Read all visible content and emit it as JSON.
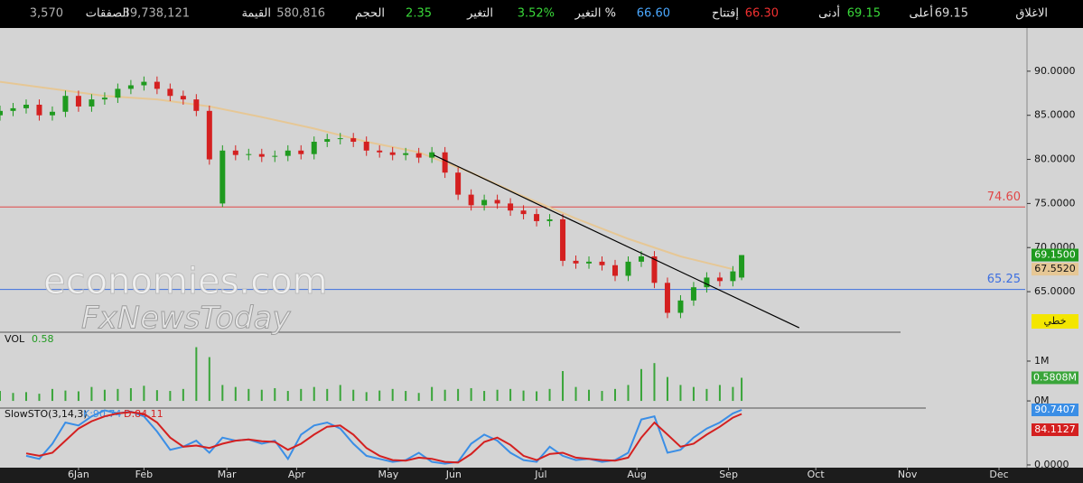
{
  "header": {
    "items": [
      {
        "label": "الاغلاق",
        "value": "69.15",
        "color": "#d8d8d8"
      },
      {
        "label": "أعلى",
        "value": "69.15",
        "color": "#39d839"
      },
      {
        "label": "أدنى",
        "value": "66.30",
        "color": "#f03030"
      },
      {
        "label": "إفتتاح",
        "value": "66.60",
        "color": "#4aa8ff"
      },
      {
        "label": "التغير %",
        "value": "3.52%",
        "color": "#39d839"
      },
      {
        "label": "التغير",
        "value": "2.35",
        "color": "#39d839"
      },
      {
        "label": "الحجم",
        "value": "580,816",
        "color": "#b0b0b0"
      },
      {
        "label": "القيمة",
        "value": "39,738,121",
        "color": "#b0b0b0"
      },
      {
        "label": "الصفقات",
        "value": "3,570",
        "color": "#b0b0b0"
      }
    ]
  },
  "watermark": [
    "economies.com",
    "FxNewsToday"
  ],
  "chart_data": [
    {
      "type": "candlestick",
      "x": [
        0,
        3,
        6,
        9,
        12,
        15,
        18,
        21,
        24,
        27,
        30,
        33,
        36,
        39,
        42,
        45,
        48,
        51,
        54,
        57,
        60,
        63,
        66,
        69,
        72,
        75,
        78,
        81,
        84,
        87,
        90,
        93,
        96,
        99,
        102,
        105,
        108,
        111,
        114,
        117,
        120,
        123,
        126,
        129,
        132,
        135,
        138,
        141,
        144,
        147,
        150,
        153,
        156,
        159,
        162,
        165,
        168,
        170
      ],
      "open": [
        85.0,
        85.5,
        85.8,
        86.2,
        85.0,
        85.4,
        87.2,
        86.0,
        86.8,
        87.0,
        88.0,
        88.4,
        88.8,
        88.0,
        87.2,
        86.8,
        85.5,
        75.0,
        81.0,
        80.5,
        80.6,
        80.3,
        80.4,
        81.0,
        80.6,
        82.0,
        82.3,
        82.4,
        82.0,
        81.0,
        80.8,
        80.5,
        80.7,
        80.2,
        80.8,
        78.5,
        76.0,
        74.8,
        75.4,
        75.0,
        74.2,
        73.8,
        73.0,
        73.2,
        68.5,
        68.2,
        68.4,
        68.0,
        66.8,
        68.4,
        69.0,
        66.0,
        62.6,
        64.0,
        65.5,
        66.6,
        66.2,
        66.6
      ],
      "high": [
        86.1,
        86.4,
        86.8,
        86.8,
        86.0,
        87.8,
        87.8,
        87.4,
        87.6,
        88.6,
        89.0,
        89.4,
        89.4,
        88.6,
        87.8,
        87.4,
        86.1,
        81.6,
        81.6,
        81.2,
        81.2,
        81.0,
        81.6,
        81.6,
        82.6,
        82.9,
        83.0,
        83.0,
        82.6,
        81.6,
        81.4,
        81.3,
        81.3,
        81.4,
        81.4,
        79.1,
        76.6,
        76.0,
        76.0,
        75.6,
        74.8,
        74.4,
        73.8,
        73.8,
        69.1,
        69.0,
        69.0,
        68.6,
        69.0,
        69.6,
        69.6,
        66.6,
        64.6,
        66.1,
        67.2,
        67.2,
        67.9,
        69.15
      ],
      "low": [
        84.4,
        84.9,
        85.2,
        84.4,
        84.4,
        84.8,
        85.4,
        85.4,
        86.2,
        86.4,
        87.4,
        87.8,
        87.4,
        86.6,
        86.2,
        84.9,
        79.4,
        74.6,
        79.9,
        79.9,
        79.7,
        79.7,
        79.8,
        80.0,
        80.0,
        81.4,
        81.7,
        81.4,
        80.4,
        80.2,
        79.9,
        79.9,
        79.6,
        79.6,
        77.9,
        75.4,
        74.2,
        74.2,
        74.4,
        73.6,
        73.2,
        72.4,
        72.4,
        67.9,
        67.6,
        67.6,
        67.4,
        66.2,
        66.2,
        67.8,
        65.4,
        62.0,
        62.0,
        63.4,
        64.9,
        65.6,
        65.6,
        66.3
      ],
      "close": [
        85.5,
        85.8,
        86.2,
        85.0,
        85.4,
        87.2,
        86.0,
        86.8,
        87.0,
        88.0,
        88.4,
        88.8,
        88.0,
        87.2,
        86.8,
        85.5,
        80.0,
        81.0,
        80.5,
        80.6,
        80.3,
        80.4,
        81.0,
        80.6,
        82.0,
        82.3,
        82.4,
        82.0,
        81.0,
        80.8,
        80.5,
        80.7,
        80.2,
        80.8,
        78.5,
        76.0,
        74.8,
        75.4,
        75.0,
        74.2,
        73.8,
        73.0,
        73.2,
        68.5,
        68.2,
        68.4,
        68.0,
        66.8,
        68.4,
        69.0,
        66.0,
        62.6,
        64.0,
        65.5,
        66.6,
        66.2,
        67.3,
        69.15
      ],
      "up_color": "#1f9a1f",
      "down_color": "#d42020",
      "xlim": [
        0,
        235
      ],
      "xticks": [
        {
          "value": 18,
          "label": "6Jan"
        },
        {
          "value": 33,
          "label": "Feb"
        },
        {
          "value": 52,
          "label": "Mar"
        },
        {
          "value": 68,
          "label": "Apr"
        },
        {
          "value": 89,
          "label": "May"
        },
        {
          "value": 104,
          "label": "Jun"
        },
        {
          "value": 124,
          "label": "Jul"
        },
        {
          "value": 146,
          "label": "Aug"
        },
        {
          "value": 167,
          "label": "Sep"
        },
        {
          "value": 187,
          "label": "Oct"
        },
        {
          "value": 208,
          "label": "Nov"
        },
        {
          "value": 229,
          "label": "Dec"
        }
      ],
      "ylim": [
        60.4,
        94.9
      ],
      "yticks": [
        {
          "value": 65,
          "label": "65.0000"
        },
        {
          "value": 70,
          "label": "70.0000"
        },
        {
          "value": 75,
          "label": "75.0000"
        },
        {
          "value": 80,
          "label": "80.0000"
        },
        {
          "value": 85,
          "label": "85.0000"
        },
        {
          "value": 90,
          "label": "90.0000"
        }
      ],
      "moving_average": {
        "color": "#e6c795",
        "x": [
          0,
          12,
          24,
          36,
          48,
          60,
          72,
          84,
          96,
          108,
          120,
          132,
          144,
          156,
          168
        ],
        "values": [
          88.8,
          88.0,
          87.2,
          86.8,
          86.0,
          84.8,
          83.5,
          82.0,
          80.8,
          78.5,
          75.8,
          73.3,
          71.0,
          69.0,
          67.55
        ]
      },
      "trendline": {
        "color": "#000000",
        "x": [
          99.4,
          183.2
        ],
        "y": [
          80.5,
          60.9
        ]
      },
      "hlines": [
        {
          "value": 74.6,
          "label": "74.60",
          "color": "#e04848"
        },
        {
          "value": 65.25,
          "label": "65.25",
          "color": "#3d6fe0"
        }
      ],
      "last_price": {
        "value": 69.15,
        "label": "69.1500",
        "color": "#1f9a1f"
      },
      "ma_last": {
        "value": 67.552,
        "label": "67.5520",
        "color": "#e6c795"
      },
      "style_label": "خطي"
    },
    {
      "type": "bar",
      "title": "VOL",
      "legend_value": {
        "value": 580000,
        "label": "0.58"
      },
      "color": "#3aa53a",
      "x": [
        0,
        3,
        6,
        9,
        12,
        15,
        18,
        21,
        24,
        27,
        30,
        33,
        36,
        39,
        42,
        45,
        48,
        51,
        54,
        57,
        60,
        63,
        66,
        69,
        72,
        75,
        78,
        81,
        84,
        87,
        90,
        93,
        96,
        99,
        102,
        105,
        108,
        111,
        114,
        117,
        120,
        123,
        126,
        129,
        132,
        135,
        138,
        141,
        144,
        147,
        150,
        153,
        156,
        159,
        162,
        165,
        168,
        170
      ],
      "values": [
        250000,
        200000,
        220000,
        180000,
        300000,
        260000,
        240000,
        350000,
        280000,
        300000,
        320000,
        380000,
        270000,
        250000,
        300000,
        1350000,
        1100000,
        400000,
        350000,
        300000,
        280000,
        320000,
        250000,
        300000,
        350000,
        300000,
        400000,
        280000,
        220000,
        260000,
        300000,
        250000,
        200000,
        350000,
        280000,
        300000,
        320000,
        250000,
        280000,
        300000,
        260000,
        240000,
        300000,
        750000,
        350000,
        280000,
        250000,
        300000,
        400000,
        800000,
        950000,
        600000,
        400000,
        350000,
        300000,
        400000,
        350000,
        580816
      ],
      "xlim": [
        0,
        235
      ],
      "ylim": [
        -180000,
        1680000
      ],
      "yticks": [
        {
          "value": 0,
          "label": "0M"
        },
        {
          "value": 1000000,
          "label": "1M"
        }
      ],
      "current": {
        "value": 580800,
        "label": "0.5808M"
      }
    },
    {
      "type": "line",
      "title": "SlowSTO(3,14,3)",
      "x": [
        0,
        3,
        6,
        9,
        12,
        15,
        18,
        21,
        24,
        27,
        30,
        33,
        36,
        39,
        42,
        45,
        48,
        51,
        54,
        57,
        60,
        63,
        66,
        69,
        72,
        75,
        78,
        81,
        84,
        87,
        90,
        93,
        96,
        99,
        102,
        105,
        108,
        111,
        114,
        117,
        120,
        123,
        126,
        129,
        132,
        135,
        138,
        141,
        144,
        147,
        150,
        153,
        156,
        159,
        162,
        165,
        168,
        170
      ],
      "series": [
        {
          "name": "K:90.74",
          "color": "#3a8ee6",
          "values": [
            null,
            null,
            15,
            10,
            35,
            70,
            65,
            80,
            90,
            85,
            88,
            80,
            55,
            25,
            30,
            40,
            20,
            45,
            40,
            42,
            35,
            40,
            10,
            50,
            65,
            70,
            60,
            35,
            15,
            10,
            5,
            8,
            20,
            5,
            2,
            5,
            35,
            50,
            40,
            20,
            8,
            5,
            30,
            15,
            8,
            10,
            5,
            8,
            20,
            75,
            80,
            20,
            25,
            45,
            60,
            70,
            85,
            90.74
          ],
          "current": {
            "value": 90.7407,
            "label": "90.7407"
          }
        },
        {
          "name": "D:84.11",
          "color": "#d42020",
          "values": [
            null,
            null,
            19,
            15,
            20,
            40,
            60,
            72,
            80,
            85,
            87,
            84,
            70,
            45,
            30,
            32,
            28,
            35,
            40,
            42,
            39,
            38,
            25,
            35,
            50,
            63,
            65,
            50,
            28,
            15,
            8,
            7,
            12,
            10,
            5,
            4,
            18,
            38,
            45,
            33,
            15,
            8,
            18,
            20,
            12,
            10,
            8,
            7,
            12,
            45,
            70,
            50,
            30,
            35,
            50,
            63,
            78,
            84.11
          ],
          "current": {
            "value": 84.1127,
            "label": "84.1127"
          }
        }
      ],
      "xlim": [
        0,
        235
      ],
      "ylim": [
        -4.5,
        93.75
      ],
      "yticks": [
        {
          "value": 0,
          "label": "0.0000"
        }
      ]
    }
  ]
}
